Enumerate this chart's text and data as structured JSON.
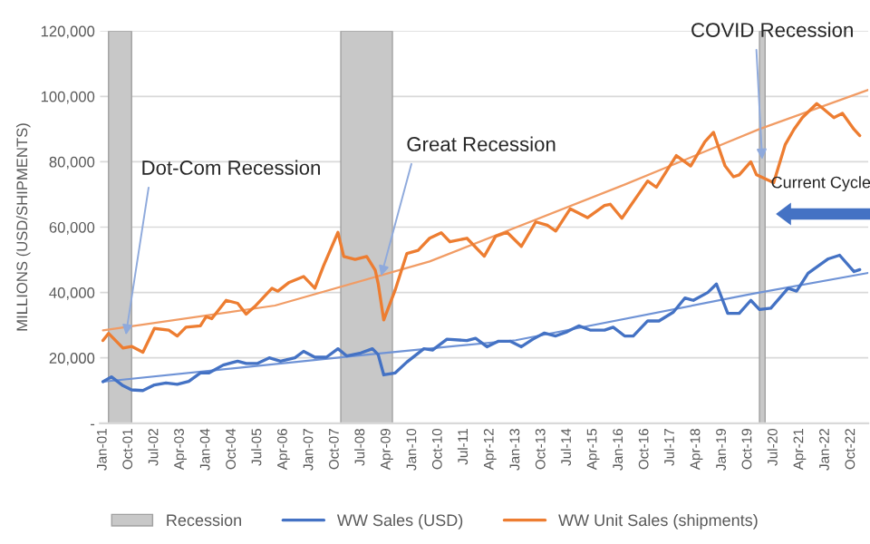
{
  "chart_data": {
    "type": "line",
    "ylabel": "MILLIONS (USD/SHIPMENTS)",
    "xlim": [
      "2000-12",
      "2023-04"
    ],
    "ylim": [
      0,
      120000
    ],
    "yticks": [
      {
        "value": 0,
        "label": "-"
      },
      {
        "value": 20000,
        "label": "20,000"
      },
      {
        "value": 40000,
        "label": "40,000"
      },
      {
        "value": 60000,
        "label": "60,000"
      },
      {
        "value": 80000,
        "label": "80,000"
      },
      {
        "value": 100000,
        "label": "100,000"
      },
      {
        "value": 120000,
        "label": "120,000"
      }
    ],
    "xticks": [
      {
        "value": "2001-01",
        "label": "Jan-01"
      },
      {
        "value": "2001-10",
        "label": "Oct-01"
      },
      {
        "value": "2002-07",
        "label": "Jul-02"
      },
      {
        "value": "2003-04",
        "label": "Apr-03"
      },
      {
        "value": "2004-01",
        "label": "Jan-04"
      },
      {
        "value": "2004-10",
        "label": "Oct-04"
      },
      {
        "value": "2005-07",
        "label": "Jul-05"
      },
      {
        "value": "2006-04",
        "label": "Apr-06"
      },
      {
        "value": "2007-01",
        "label": "Jan-07"
      },
      {
        "value": "2007-10",
        "label": "Oct-07"
      },
      {
        "value": "2008-07",
        "label": "Jul-08"
      },
      {
        "value": "2009-04",
        "label": "Apr-09"
      },
      {
        "value": "2010-01",
        "label": "Jan-10"
      },
      {
        "value": "2010-10",
        "label": "Oct-10"
      },
      {
        "value": "2011-07",
        "label": "Jul-11"
      },
      {
        "value": "2012-04",
        "label": "Apr-12"
      },
      {
        "value": "2013-01",
        "label": "Jan-13"
      },
      {
        "value": "2013-10",
        "label": "Oct-13"
      },
      {
        "value": "2014-07",
        "label": "Jul-14"
      },
      {
        "value": "2015-04",
        "label": "Apr-15"
      },
      {
        "value": "2016-01",
        "label": "Jan-16"
      },
      {
        "value": "2016-10",
        "label": "Oct-16"
      },
      {
        "value": "2017-07",
        "label": "Jul-17"
      },
      {
        "value": "2018-04",
        "label": "Apr-18"
      },
      {
        "value": "2019-01",
        "label": "Jan-19"
      },
      {
        "value": "2019-10",
        "label": "Oct-19"
      },
      {
        "value": "2020-07",
        "label": "Jul-20"
      },
      {
        "value": "2021-04",
        "label": "Apr-21"
      },
      {
        "value": "2022-01",
        "label": "Jan-22"
      },
      {
        "value": "2022-10",
        "label": "Oct-22"
      }
    ],
    "grid": "y",
    "legend": "bottom",
    "bands": [
      {
        "axis": "x",
        "from": "2001-03",
        "to": "2001-11",
        "label": "Recession",
        "color": "#c8c8c8"
      },
      {
        "axis": "x",
        "from": "2007-12",
        "to": "2009-06",
        "color": "#c8c8c8"
      },
      {
        "axis": "x",
        "from": "2020-02",
        "to": "2020-04",
        "color": "#c8c8c8"
      }
    ],
    "series": [
      {
        "name": "WW Sales (USD)",
        "color": "#4472c4",
        "x": [
          "2001-01",
          "2001-04",
          "2001-08",
          "2001-11",
          "2002-03",
          "2002-07",
          "2002-11",
          "2003-03",
          "2003-07",
          "2003-11",
          "2004-02",
          "2004-07",
          "2004-12",
          "2005-03",
          "2005-07",
          "2005-11",
          "2006-03",
          "2006-08",
          "2006-11",
          "2007-03",
          "2007-07",
          "2007-11",
          "2008-02",
          "2008-07",
          "2008-11",
          "2009-01",
          "2009-03",
          "2009-07",
          "2009-11",
          "2010-05",
          "2010-08",
          "2011-01",
          "2011-08",
          "2011-11",
          "2012-03",
          "2012-07",
          "2012-11",
          "2013-03",
          "2013-07",
          "2013-11",
          "2014-03",
          "2014-07",
          "2014-11",
          "2015-03",
          "2015-08",
          "2015-11",
          "2016-03",
          "2016-06",
          "2016-11",
          "2017-03",
          "2017-08",
          "2017-12",
          "2018-03",
          "2018-08",
          "2018-11",
          "2019-03",
          "2019-07",
          "2019-11",
          "2020-02",
          "2020-06",
          "2020-12",
          "2021-03",
          "2021-07",
          "2022-02",
          "2022-06",
          "2022-11",
          "2023-01"
        ],
        "values": [
          12700,
          14200,
          11500,
          10200,
          10000,
          11700,
          12300,
          11900,
          12800,
          15400,
          15400,
          17800,
          19000,
          18300,
          18300,
          20000,
          19000,
          20000,
          22000,
          20200,
          20200,
          22800,
          20600,
          21500,
          22800,
          21000,
          14800,
          15400,
          18700,
          22800,
          22400,
          25700,
          25300,
          26000,
          23400,
          25100,
          25100,
          23400,
          25700,
          27600,
          26700,
          28000,
          29800,
          28500,
          28500,
          29400,
          26700,
          26700,
          31300,
          31300,
          34000,
          38300,
          37600,
          40000,
          42600,
          33600,
          33600,
          37600,
          34800,
          35200,
          41300,
          40400,
          45900,
          50300,
          51400,
          46400,
          47000
        ]
      },
      {
        "name": "WW Unit Sales (shipments)",
        "color": "#ed7d31",
        "x": [
          "2001-01",
          "2001-03",
          "2001-08",
          "2001-11",
          "2002-03",
          "2002-07",
          "2002-12",
          "2003-03",
          "2003-06",
          "2003-11",
          "2004-01",
          "2004-03",
          "2004-08",
          "2004-12",
          "2005-03",
          "2005-06",
          "2005-12",
          "2006-02",
          "2006-06",
          "2006-11",
          "2007-03",
          "2007-06",
          "2007-11",
          "2008-01",
          "2008-05",
          "2008-09",
          "2008-12",
          "2009-01",
          "2009-03",
          "2009-07",
          "2009-09",
          "2009-11",
          "2010-03",
          "2010-07",
          "2010-11",
          "2011-02",
          "2011-08",
          "2012-02",
          "2012-06",
          "2012-10",
          "2013-03",
          "2013-08",
          "2013-12",
          "2014-03",
          "2014-08",
          "2015-02",
          "2015-08",
          "2015-10",
          "2016-02",
          "2016-11",
          "2017-02",
          "2017-09",
          "2018-02",
          "2018-07",
          "2018-10",
          "2019-02",
          "2019-05",
          "2019-07",
          "2019-11",
          "2020-01",
          "2020-07",
          "2020-11",
          "2021-02",
          "2021-05",
          "2021-10",
          "2021-12",
          "2022-04",
          "2022-07",
          "2022-11",
          "2023-01"
        ],
        "values": [
          25300,
          27500,
          23000,
          23500,
          21700,
          29000,
          28500,
          26700,
          29400,
          29800,
          32600,
          32000,
          37600,
          36700,
          33400,
          35700,
          41300,
          40400,
          43100,
          44900,
          41300,
          48200,
          58400,
          51000,
          50100,
          51000,
          46800,
          42700,
          31600,
          40800,
          46400,
          51900,
          52900,
          56600,
          58300,
          55500,
          56600,
          51100,
          57200,
          58400,
          54100,
          61600,
          60600,
          58800,
          65600,
          62900,
          66600,
          67000,
          62700,
          74100,
          72200,
          81900,
          78700,
          86100,
          89000,
          78700,
          75400,
          76000,
          80000,
          76000,
          73600,
          85300,
          89900,
          93500,
          97800,
          96400,
          93500,
          94800,
          89900,
          88000
        ]
      },
      {
        "color": "#6f93d6",
        "x": [
          "2001-01",
          "2008-07",
          "2013-01",
          "2019-11",
          "2023-04"
        ],
        "values": [
          12700,
          20800,
          25400,
          39500,
          46000
        ]
      },
      {
        "color": "#f19c65",
        "x": [
          "2001-01",
          "2006-01",
          "2010-07",
          "2016-03",
          "2020-02",
          "2023-04"
        ],
        "values": [
          28400,
          36000,
          49500,
          73000,
          90000,
          102000
        ]
      }
    ],
    "annotations": [
      {
        "text": "Dot-Com Recession",
        "x": "2001-09",
        "y": 27000
      },
      {
        "text": "Great Recession",
        "x": "2009-02",
        "y": 45000
      },
      {
        "text": "COVID Recession",
        "x": "2020-03",
        "y": 80700
      },
      {
        "text": "Current Cycle",
        "x": "2020-06",
        "y": 64000
      }
    ]
  }
}
